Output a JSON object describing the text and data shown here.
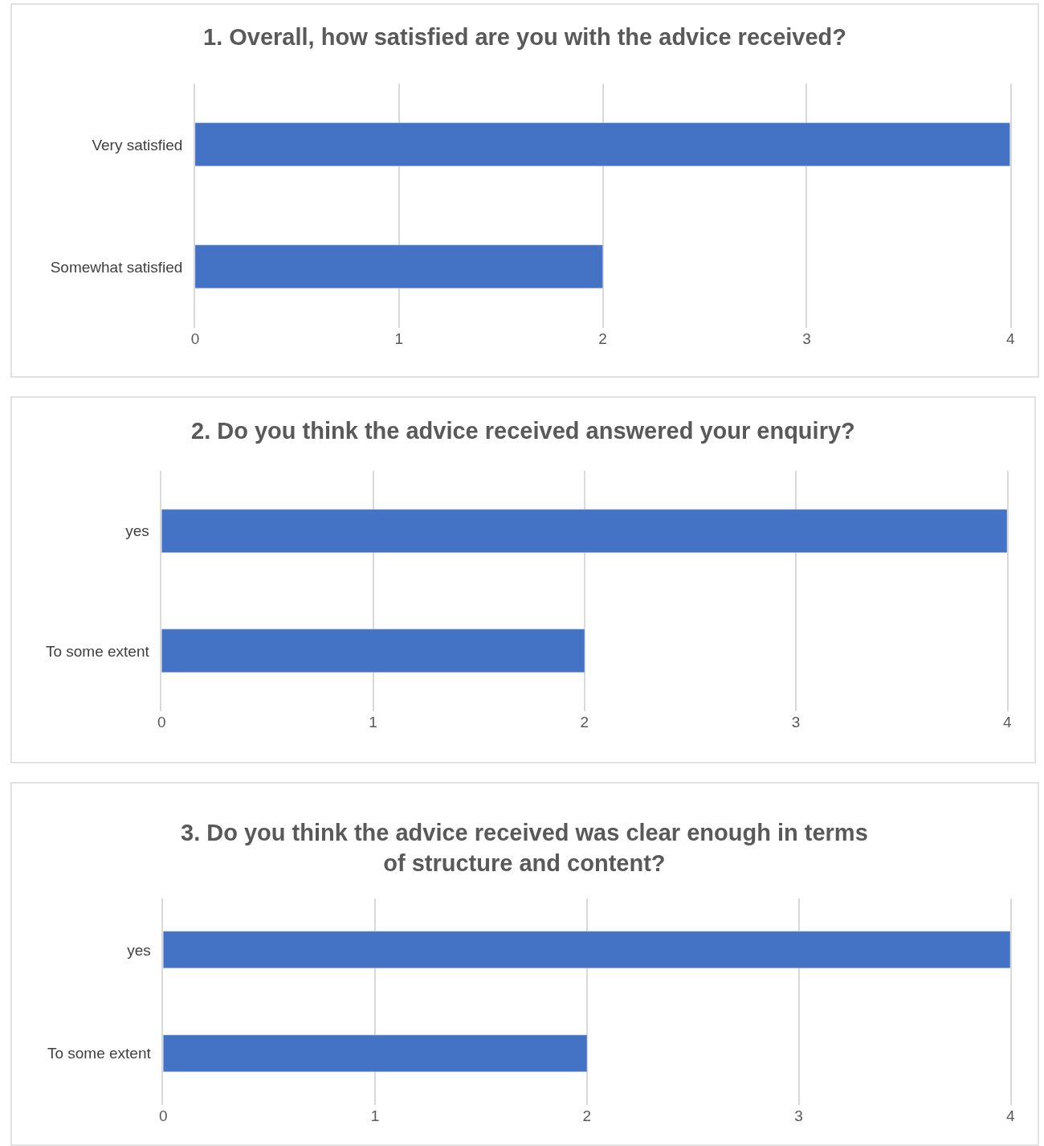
{
  "chart_data": [
    {
      "type": "bar",
      "orientation": "horizontal",
      "title": "1. Overall, how satisfied are you with the advice received?",
      "categories": [
        "Very satisfied",
        "Somewhat satisfied"
      ],
      "values": [
        4,
        2
      ],
      "color": "#4472c4",
      "xlim": [
        0,
        4
      ],
      "xticks": [
        0,
        1,
        2,
        3,
        4
      ],
      "grid": "x"
    },
    {
      "type": "bar",
      "orientation": "horizontal",
      "title": "2. Do you think the advice received answered your enquiry?",
      "categories": [
        "yes",
        "To some extent"
      ],
      "values": [
        4,
        2
      ],
      "color": "#4472c4",
      "xlim": [
        0,
        4
      ],
      "xticks": [
        0,
        1,
        2,
        3,
        4
      ],
      "grid": "x"
    },
    {
      "type": "bar",
      "orientation": "horizontal",
      "title": "3. Do you think the advice received was clear enough in terms of structure and content?",
      "categories": [
        "yes",
        "To some extent"
      ],
      "values": [
        4,
        2
      ],
      "color": "#4472c4",
      "xlim": [
        0,
        4
      ],
      "xticks": [
        0,
        1,
        2,
        3,
        4
      ],
      "grid": "x"
    }
  ]
}
